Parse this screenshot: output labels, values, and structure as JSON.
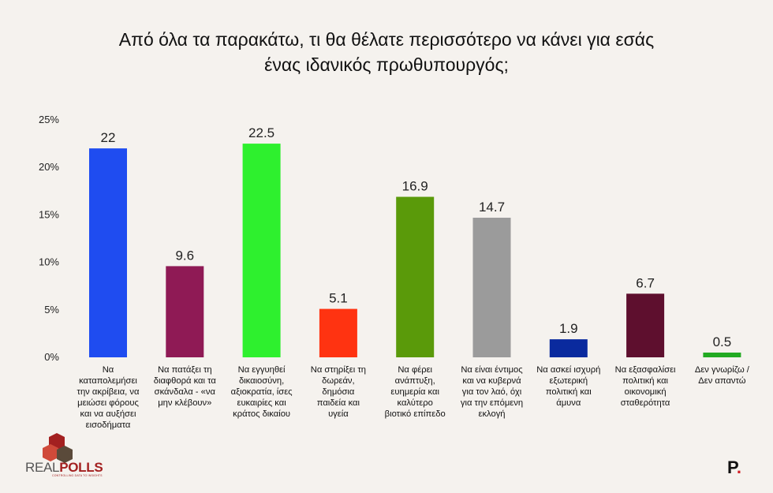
{
  "title_lines": [
    "Από όλα τα παρακάτω, τι θα θέλατε περισσότερο να κάνει για εσάς",
    "ένας ιδανικός πρωθυπουργός;"
  ],
  "chart_data": {
    "type": "bar",
    "title": "Από όλα τα παρακάτω, τι θα θέλατε περισσότερο να κάνει για εσάς ένας ιδανικός πρωθυπουργός;",
    "categories": [
      "Να καταπολεμήσει την ακρίβεια, να μειώσει φόρους και να αυξήσει εισοδήματα",
      "Να πατάξει τη διαφθορά και τα σκάνδαλα - «να μην κλέβουν»",
      "Να εγγυηθεί δικαιοσύνη, αξιοκρατία, ίσες ευκαιρίες και κράτος δικαίου",
      "Να στηρίξει τη δωρεάν, δημόσια παιδεία και υγεία",
      "Να φέρει ανάπτυξη, ευημερία και καλύτερο βιοτικό επίπεδο",
      "Να είναι έντιμος και να κυβερνά για τον λαό, όχι για την επόμενη εκλογή",
      "Να ασκεί ισχυρή εξωτερική πολιτική και άμυνα",
      "Να εξασφαλίσει πολιτική και οικονομική σταθερότητα",
      "Δεν γνωρίζω / Δεν απαντώ"
    ],
    "category_lines": [
      [
        "Να",
        "καταπολεμήσει",
        "την ακρίβεια, να",
        "μειώσει φόρους",
        "και να αυξήσει",
        "εισοδήματα"
      ],
      [
        "Να πατάξει τη",
        "διαφθορά και τα",
        "σκάνδαλα - «να",
        "μην κλέβουν»"
      ],
      [
        "Να εγγυηθεί",
        "δικαιοσύνη,",
        "αξιοκρατία, ίσες",
        "ευκαιρίες και",
        "κράτος δικαίου"
      ],
      [
        "Να στηρίξει τη",
        "δωρεάν,",
        "δημόσια",
        "παιδεία και",
        "υγεία"
      ],
      [
        "Να φέρει",
        "ανάπτυξη,",
        "ευημερία και",
        "καλύτερο",
        "βιοτικό επίπεδο"
      ],
      [
        "Να είναι έντιμος",
        "και να κυβερνά",
        "για τον λαό, όχι",
        "για την επόμενη",
        "εκλογή"
      ],
      [
        "Να ασκεί ισχυρή",
        "εξωτερική",
        "πολιτική και",
        "άμυνα"
      ],
      [
        "Να εξασφαλίσει",
        "πολιτική και",
        "οικονομική",
        "σταθερότητα"
      ],
      [
        "Δεν γνωρίζω /",
        "Δεν απαντώ"
      ]
    ],
    "values": [
      22,
      9.6,
      22.5,
      5.1,
      16.9,
      14.7,
      1.9,
      6.7,
      0.5
    ],
    "value_labels": [
      "22",
      "9.6",
      "22.5",
      "5.1",
      "16.9",
      "14.7",
      "1.9",
      "6.7",
      "0.5"
    ],
    "colors": [
      "#1f4cf0",
      "#8f1a55",
      "#2ef02e",
      "#ff3311",
      "#5a9a0a",
      "#9b9b9b",
      "#0a2a9e",
      "#5e0f2e",
      "#22aa22"
    ],
    "yticks": [
      0,
      5,
      10,
      15,
      20,
      25
    ],
    "ytick_labels": [
      "0%",
      "5%",
      "10%",
      "15%",
      "20%",
      "25%"
    ],
    "ylim": [
      0,
      25
    ],
    "grid": false,
    "legend": "none"
  },
  "logo": {
    "name_prefix": "REAL",
    "name_suffix": "POLLS",
    "tagline": "CONTROLLING DATA TO INSIGHTS",
    "colors": [
      "#a32020",
      "#d04a3a",
      "#5a4a3a"
    ]
  },
  "brand": {
    "letter": "P",
    "dot": "."
  }
}
